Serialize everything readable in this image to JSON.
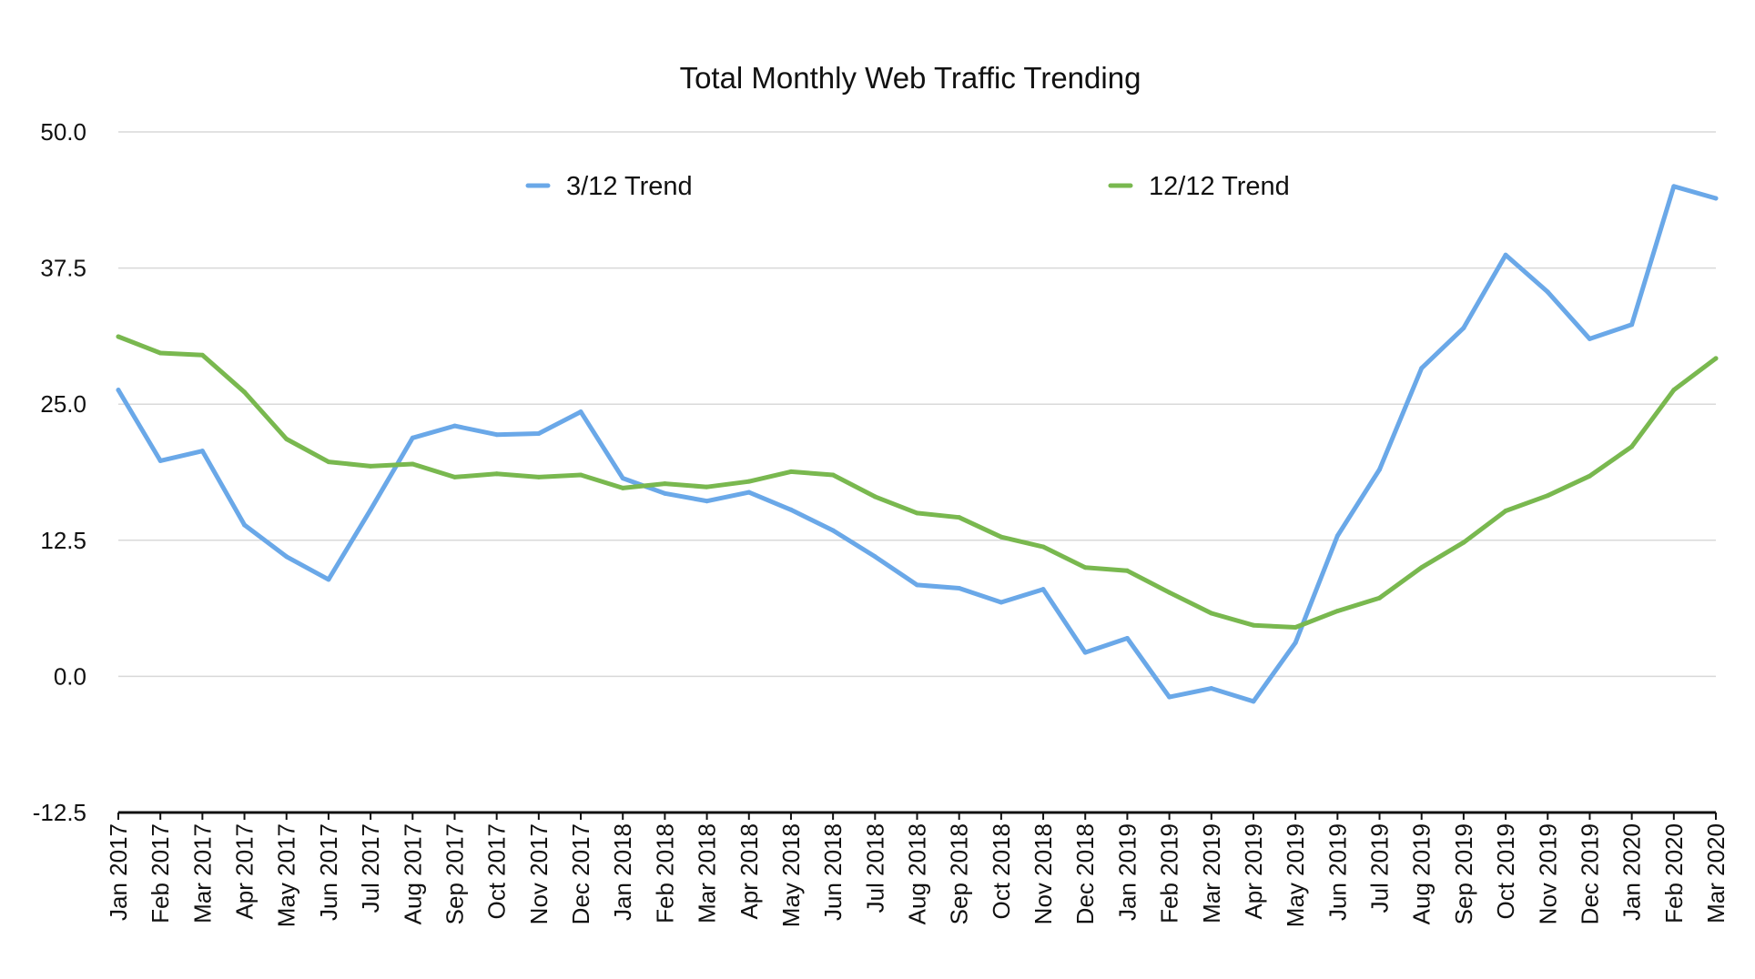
{
  "chart_data": {
    "type": "line",
    "title": "Total Monthly Web Traffic Trending",
    "xlabel": "",
    "ylabel": "",
    "ylim": [
      -12.5,
      50
    ],
    "yticks": [
      "50.0",
      "37.5",
      "25.0",
      "12.5",
      "0.0",
      "-12.5"
    ],
    "grid": true,
    "legend_position": "top",
    "categories": [
      "Jan 2017",
      "Feb 2017",
      "Mar 2017",
      "Apr 2017",
      "May 2017",
      "Jun 2017",
      "Jul 2017",
      "Aug 2017",
      "Sep 2017",
      "Oct 2017",
      "Nov 2017",
      "Dec 2017",
      "Jan 2018",
      "Feb 2018",
      "Mar 2018",
      "Apr 2018",
      "May 2018",
      "Jun 2018",
      "Jul 2018",
      "Aug 2018",
      "Sep 2018",
      "Oct 2018",
      "Nov 2018",
      "Dec 2018",
      "Jan 2019",
      "Feb 2019",
      "Mar 2019",
      "Apr 2019",
      "May 2019",
      "Jun 2019",
      "Jul 2019",
      "Aug 2019",
      "Sep 2019",
      "Oct 2019",
      "Nov 2019",
      "Dec 2019",
      "Jan 2020",
      "Feb 2020",
      "Mar 2020"
    ],
    "series": [
      {
        "name": "3/12 Trend",
        "color": "#6aa8e8",
        "values": [
          26.3,
          19.8,
          20.7,
          13.9,
          11.0,
          8.9,
          15.3,
          21.9,
          23.0,
          22.2,
          22.3,
          24.3,
          18.2,
          16.8,
          16.1,
          16.9,
          15.3,
          13.4,
          11.0,
          8.4,
          8.1,
          6.8,
          8.0,
          2.2,
          3.5,
          -1.9,
          -1.1,
          -2.3,
          3.1,
          12.9,
          19.0,
          28.3,
          32.0,
          38.7,
          35.3,
          31.0,
          32.3,
          45.0,
          43.9
        ]
      },
      {
        "name": "12/12 Trend",
        "color": "#79b84f",
        "values": [
          31.2,
          29.7,
          29.5,
          26.1,
          21.8,
          19.7,
          19.3,
          19.5,
          18.3,
          18.6,
          18.3,
          18.5,
          17.3,
          17.7,
          17.4,
          17.9,
          18.8,
          18.5,
          16.5,
          15.0,
          14.6,
          12.8,
          11.9,
          10.0,
          9.7,
          7.7,
          5.8,
          4.7,
          4.5,
          6.0,
          7.2,
          10.0,
          12.3,
          15.2,
          16.6,
          18.4,
          21.1,
          26.3,
          29.2
        ]
      }
    ]
  }
}
